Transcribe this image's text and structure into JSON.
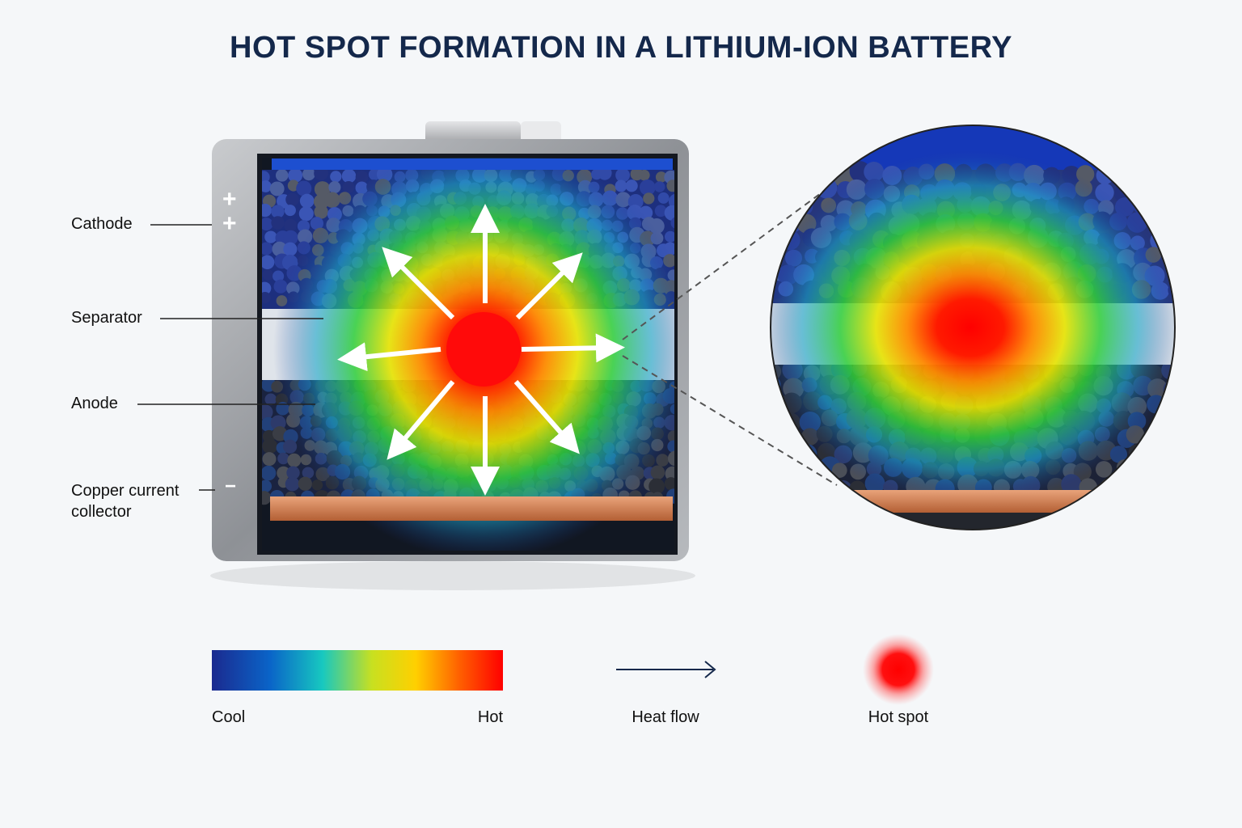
{
  "header": {
    "title": "HOT SPOT FORMATION IN A LITHIUM-ION BATTERY"
  },
  "labels": {
    "cathode": "Cathode",
    "separator": "Separator",
    "anode": "Anode",
    "copper": "Copper current collector"
  },
  "terminals": [
    "+",
    "+",
    "−"
  ],
  "legend": {
    "cool": "Cool",
    "hot": "Hot",
    "heat_flow": "Heat flow",
    "hot_spot": "Hot spot"
  }
}
